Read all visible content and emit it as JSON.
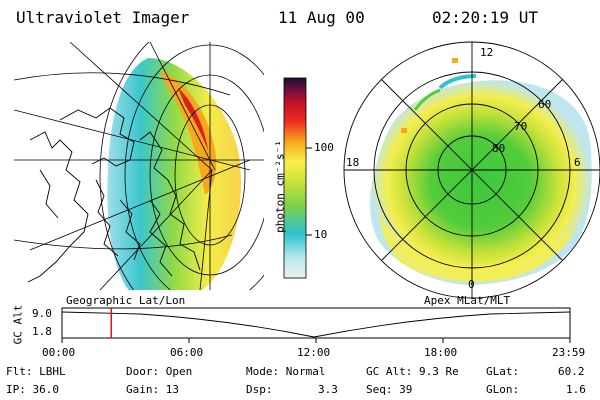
{
  "header": {
    "instrument": "Ultraviolet Imager",
    "date": "11 Aug 00",
    "time": "02:20:19 UT"
  },
  "colorbar": {
    "unit_label": "photon cm⁻²s⁻¹",
    "ticks": [
      "100",
      "10"
    ],
    "scale": "log"
  },
  "geo_panel": {
    "caption": "Geographic Lat/Lon"
  },
  "polar_panel": {
    "caption": "Apex MLat/MLT",
    "mlt_labels": {
      "top": "12",
      "left": "18",
      "right": "6",
      "bottom": "0"
    },
    "lat_labels": [
      "60",
      "70",
      "80"
    ]
  },
  "altitude_strip": {
    "axis_label": "GC Alt",
    "y_ticks": [
      "9.0",
      "1.8"
    ],
    "x_ticks": [
      "00:00",
      "06:00",
      "12:00",
      "18:00",
      "23:59"
    ],
    "marker_time_fraction": 0.097,
    "marker_color": "#e01010"
  },
  "status": {
    "filter": "Flt: LBHL",
    "ip": "IP: 36.0",
    "door": "Door: Open",
    "gain": "Gain: 13",
    "mode": "Mode: Normal",
    "dsp_label": "Dsp:",
    "dsp_value": "3.3",
    "gc_alt": "GC Alt: 9.3 Re",
    "seq": "Seq: 39",
    "glat_label": "GLat:",
    "glat_value": "60.2",
    "glon_label": "GLon:",
    "glon_value": "1.6"
  }
}
